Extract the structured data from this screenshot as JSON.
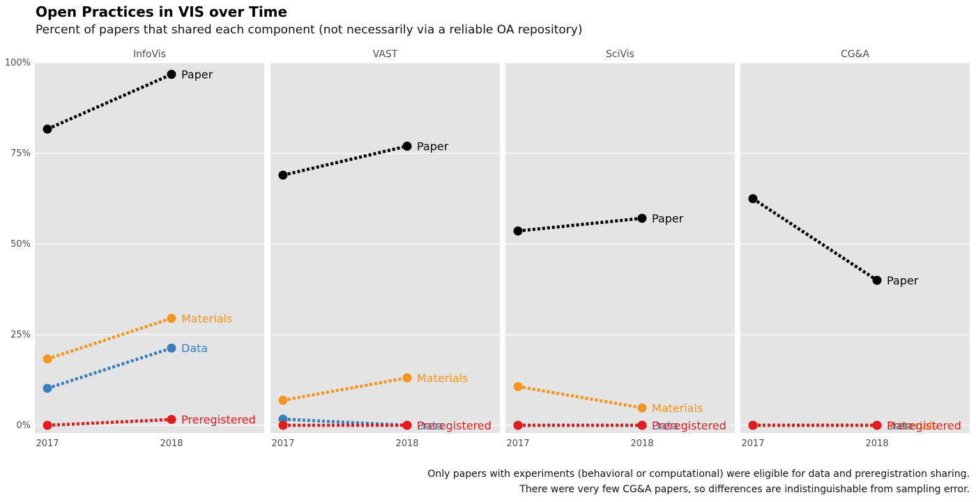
{
  "title": "Open Practices in VIS over Time",
  "subtitle": "Percent of papers that shared each component (not necessarily via a reliable OA repository)",
  "captions": [
    "Only papers with experiments (behavioral or computational) were eligible for data and preregistration sharing.",
    "There were very few CG&A papers, so differences are indistinguishable from sampling error."
  ],
  "chart_data": {
    "type": "line",
    "facets": [
      "InfoVis",
      "VAST",
      "SciVis",
      "CG&A"
    ],
    "x": [
      "2017",
      "2018"
    ],
    "y_ticks": [
      "0%",
      "25%",
      "50%",
      "75%",
      "100%"
    ],
    "ylim": [
      0,
      100
    ],
    "grid": true,
    "series_colors": {
      "Paper": "#000000",
      "Materials": "#F7941D",
      "Data": "#3A7EBF",
      "Preregistered": "#E41A1C"
    },
    "panels": [
      {
        "facet": "InfoVis",
        "series": [
          {
            "name": "Paper",
            "values": [
              81.7,
              96.8
            ]
          },
          {
            "name": "Materials",
            "values": [
              18.3,
              29.5
            ]
          },
          {
            "name": "Data",
            "values": [
              10.2,
              21.3
            ]
          },
          {
            "name": "Preregistered",
            "values": [
              0,
              1.6
            ]
          }
        ]
      },
      {
        "facet": "VAST",
        "series": [
          {
            "name": "Paper",
            "values": [
              69.0,
              77.0
            ]
          },
          {
            "name": "Materials",
            "values": [
              6.9,
              13.1
            ]
          },
          {
            "name": "Data",
            "values": [
              1.7,
              0
            ]
          },
          {
            "name": "Preregistered",
            "values": [
              0,
              0
            ]
          }
        ]
      },
      {
        "facet": "SciVis",
        "series": [
          {
            "name": "Paper",
            "values": [
              53.6,
              57.1
            ]
          },
          {
            "name": "Materials",
            "values": [
              10.7,
              4.8
            ]
          },
          {
            "name": "Data",
            "values": [
              0,
              0
            ]
          },
          {
            "name": "Preregistered",
            "values": [
              0,
              0
            ]
          }
        ]
      },
      {
        "facet": "CG&A",
        "series": [
          {
            "name": "Paper",
            "values": [
              62.5,
              40.0
            ]
          },
          {
            "name": "Materials",
            "values": [
              0,
              0
            ]
          },
          {
            "name": "Data",
            "values": [
              0,
              0
            ]
          },
          {
            "name": "Preregistered",
            "values": [
              0,
              0
            ]
          }
        ]
      }
    ]
  }
}
